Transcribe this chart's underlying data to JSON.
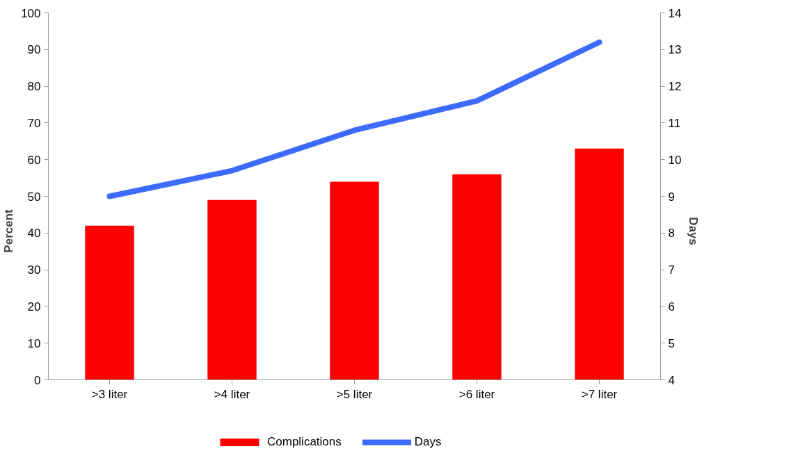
{
  "chart_data": {
    "type": "bar",
    "categories": [
      ">3 liter",
      ">4 liter",
      ">5 liter",
      ">6 liter",
      ">7 liter"
    ],
    "ylabel": "Percent",
    "y2label": "Days",
    "ylim": [
      0,
      100
    ],
    "yticks": [
      0,
      10,
      20,
      30,
      40,
      50,
      60,
      70,
      80,
      90,
      100
    ],
    "y2lim": [
      4,
      14
    ],
    "y2ticks": [
      4,
      5,
      6,
      7,
      8,
      9,
      10,
      11,
      12,
      13,
      14
    ],
    "grid": false,
    "legend": "bottom",
    "marker": "none",
    "line_style": "solid",
    "series": [
      {
        "name": "Complications",
        "color": "#ff0000",
        "values": [
          42,
          49,
          54,
          56,
          63
        ]
      },
      {
        "name": "Days",
        "type": "line",
        "axis": "y2",
        "color": "#3d6bff",
        "values": [
          9.0,
          9.7,
          10.8,
          11.6,
          13.2
        ]
      }
    ]
  }
}
